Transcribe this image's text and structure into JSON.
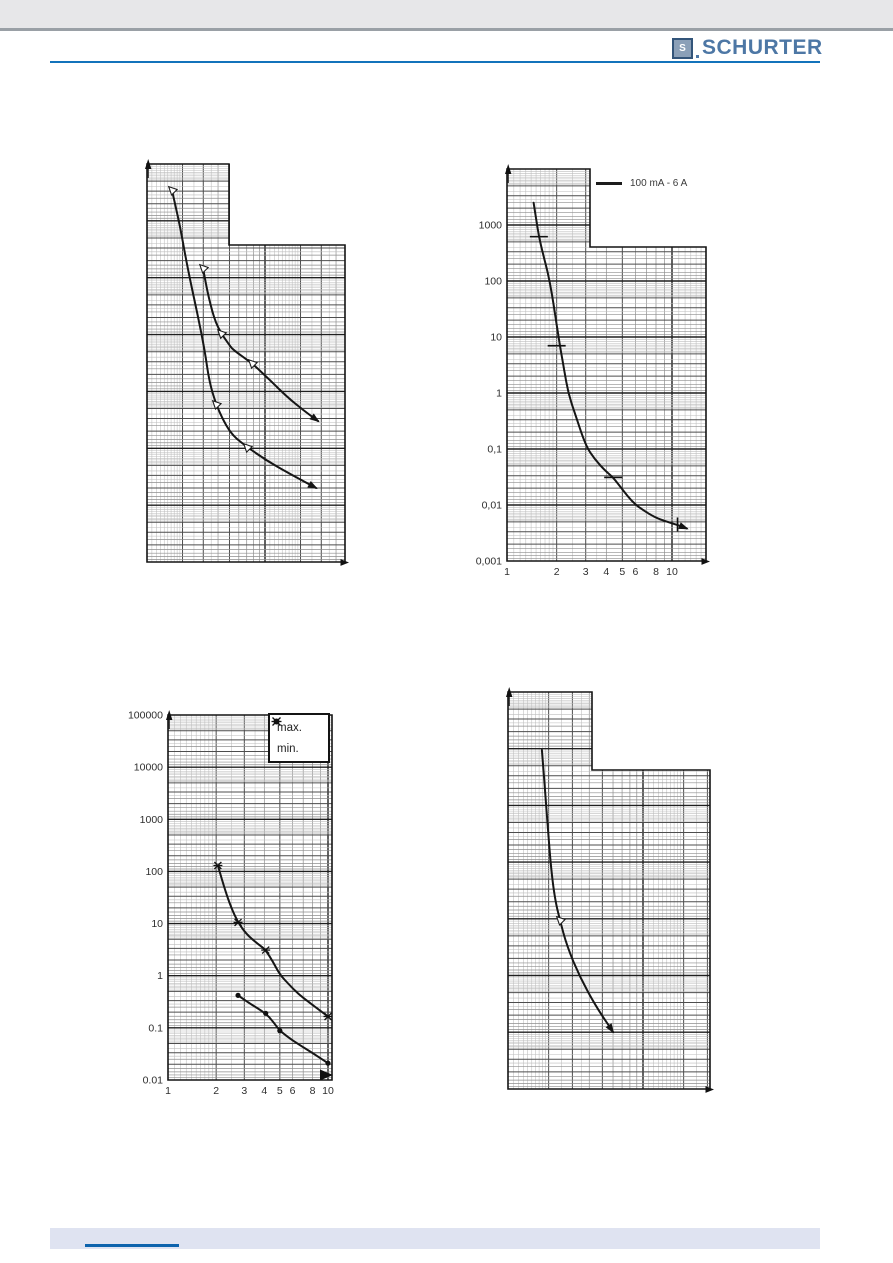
{
  "header": {
    "logo": {
      "icon": "schurter-square-s-mark",
      "icon_letter": "S",
      "text": "SCHURTER",
      "color": "#4d77a5"
    },
    "band_color": "#e7e7e9",
    "rule_color": "#1373bb"
  },
  "footer": {
    "band_color": "#dfe3f1",
    "line_color": "#0d63ad"
  },
  "chart_data": [
    {
      "id": "top-left",
      "type": "line",
      "axes": "log-log scanned grid with stepped (notched) outline; axis tick labels not visible",
      "coords": "fraction-of-plot-area",
      "x_ticks": [],
      "y_ticks": [],
      "legend": [],
      "series": [
        {
          "name": "upper-curve",
          "points": [
            [
              0.283,
              0.261
            ],
            [
              0.303,
              0.317
            ],
            [
              0.328,
              0.367
            ],
            [
              0.348,
              0.399
            ],
            [
              0.374,
              0.425
            ],
            [
              0.409,
              0.45
            ],
            [
              0.434,
              0.467
            ],
            [
              0.53,
              0.5
            ],
            [
              0.621,
              0.543
            ],
            [
              0.707,
              0.585
            ],
            [
              0.788,
              0.618
            ],
            [
              0.864,
              0.646
            ]
          ],
          "markers": [
            {
              "t": "tri",
              "at": [
                0.283,
                0.261
              ]
            },
            {
              "t": "tri",
              "at": [
                0.374,
                0.425
              ]
            },
            {
              "t": "tri",
              "at": [
                0.53,
                0.5
              ]
            }
          ],
          "arrow_end": true
        },
        {
          "name": "lower-curve",
          "points": [
            [
              0.126,
              0.065
            ],
            [
              0.152,
              0.123
            ],
            [
              0.172,
              0.171
            ],
            [
              0.207,
              0.266
            ],
            [
              0.253,
              0.372
            ],
            [
              0.293,
              0.472
            ],
            [
              0.313,
              0.543
            ],
            [
              0.348,
              0.603
            ],
            [
              0.389,
              0.648
            ],
            [
              0.434,
              0.683
            ],
            [
              0.505,
              0.711
            ],
            [
              0.601,
              0.744
            ],
            [
              0.712,
              0.776
            ],
            [
              0.854,
              0.814
            ]
          ],
          "markers": [
            {
              "t": "tri",
              "at": [
                0.126,
                0.065
              ]
            },
            {
              "t": "tri",
              "at": [
                0.348,
                0.603
              ]
            },
            {
              "t": "tri",
              "at": [
                0.505,
                0.711
              ]
            }
          ],
          "arrow_end": true
        }
      ]
    },
    {
      "id": "top-right",
      "type": "line",
      "axes": "log-log",
      "coords": "data",
      "x_ticks": [
        "1",
        "2",
        "3",
        "4",
        "5",
        "6",
        "8",
        "10"
      ],
      "y_ticks": [
        "1000",
        "100",
        "10",
        "1",
        "0,1",
        "0,01",
        "0,001"
      ],
      "x_range": [
        1,
        16
      ],
      "y_range": [
        0.001,
        10000
      ],
      "legend": [
        {
          "marker": "line",
          "label": "100 mA - 6 A"
        }
      ],
      "series": [
        {
          "name": "100 mA - 6 A",
          "points": [
            [
              1.45,
              2500
            ],
            [
              1.5,
              1300
            ],
            [
              1.56,
              620
            ],
            [
              1.66,
              290
            ],
            [
              1.77,
              140
            ],
            [
              1.88,
              55
            ],
            [
              1.98,
              20
            ],
            [
              2.1,
              6.5
            ],
            [
              2.22,
              2.6
            ],
            [
              2.35,
              1.0
            ],
            [
              2.6,
              0.4
            ],
            [
              3.0,
              0.115
            ],
            [
              3.4,
              0.066
            ],
            [
              3.9,
              0.042
            ],
            [
              4.4,
              0.031
            ],
            [
              5.0,
              0.019
            ],
            [
              5.8,
              0.011
            ],
            [
              6.8,
              0.0078
            ],
            [
              7.9,
              0.006
            ],
            [
              9.0,
              0.0052
            ],
            [
              10.0,
              0.0047
            ],
            [
              11.3,
              0.0042
            ],
            [
              12.3,
              0.0038
            ]
          ],
          "markers": [
            {
              "t": "dashh",
              "at": [
                1.56,
                620
              ]
            },
            {
              "t": "dashh",
              "at": [
                2.0,
                7.0
              ]
            },
            {
              "t": "dashh",
              "at": [
                4.4,
                0.031
              ]
            },
            {
              "t": "dashv",
              "at": [
                10.8,
                0.0045
              ]
            }
          ],
          "arrow_end": true
        }
      ]
    },
    {
      "id": "bottom-left",
      "type": "line",
      "axes": "log-log",
      "coords": "data",
      "x_ticks": [
        "1",
        "2",
        "3",
        "4",
        "5",
        "6",
        "8",
        "10"
      ],
      "y_ticks": [
        "100000",
        "10000",
        "1000",
        "100",
        "10",
        "1",
        "0.1",
        "0.01"
      ],
      "x_range": [
        1,
        10.6
      ],
      "y_range": [
        0.01,
        100000
      ],
      "legend": [
        {
          "marker": "star",
          "label": "max."
        },
        {
          "marker": "dot",
          "label": "min."
        }
      ],
      "series": [
        {
          "name": "max.",
          "points": [
            [
              2.05,
              130
            ],
            [
              2.25,
              48
            ],
            [
              2.5,
              19
            ],
            [
              2.74,
              10.5
            ],
            [
              3.1,
              6.2
            ],
            [
              3.6,
              4.2
            ],
            [
              4.08,
              3.1
            ],
            [
              4.55,
              1.8
            ],
            [
              5.0,
              1.05
            ],
            [
              5.7,
              0.68
            ],
            [
              6.5,
              0.45
            ],
            [
              7.5,
              0.32
            ],
            [
              8.5,
              0.24
            ],
            [
              10.0,
              0.165
            ]
          ],
          "markers": [
            {
              "t": "star",
              "at": [
                2.05,
                130
              ]
            },
            {
              "t": "star",
              "at": [
                2.74,
                10.5
              ]
            },
            {
              "t": "star",
              "at": [
                4.08,
                3.1
              ]
            },
            {
              "t": "star",
              "at": [
                10.0,
                0.165
              ]
            }
          ],
          "arrow_end": false
        },
        {
          "name": "min.",
          "points": [
            [
              2.74,
              0.42
            ],
            [
              3.2,
              0.3
            ],
            [
              4.08,
              0.19
            ],
            [
              4.6,
              0.125
            ],
            [
              5.0,
              0.088
            ],
            [
              5.8,
              0.062
            ],
            [
              6.5,
              0.049
            ],
            [
              8.0,
              0.033
            ],
            [
              10.0,
              0.021
            ]
          ],
          "markers": [
            {
              "t": "dot",
              "at": [
                2.74,
                0.42
              ]
            },
            {
              "t": "dot",
              "at": [
                4.08,
                0.19
              ]
            },
            {
              "t": "dot",
              "at": [
                5.0,
                0.088
              ]
            },
            {
              "t": "dot",
              "at": [
                10.0,
                0.021
              ]
            }
          ],
          "arrow_end": false
        }
      ]
    },
    {
      "id": "bottom-right",
      "type": "line",
      "axes": "log-log scanned grid with stepped (notched) outline; axis tick labels not visible",
      "coords": "fraction-of-plot-area",
      "x_ticks": [],
      "y_ticks": [],
      "legend": [],
      "series": [
        {
          "name": "curve",
          "points": [
            [
              0.168,
              0.146
            ],
            [
              0.176,
              0.2
            ],
            [
              0.183,
              0.247
            ],
            [
              0.198,
              0.348
            ],
            [
              0.213,
              0.443
            ],
            [
              0.233,
              0.524
            ],
            [
              0.257,
              0.574
            ],
            [
              0.292,
              0.64
            ],
            [
              0.356,
              0.718
            ],
            [
              0.436,
              0.793
            ],
            [
              0.52,
              0.856
            ]
          ],
          "markers": [
            {
              "t": "tri",
              "at": [
                0.257,
                0.574
              ]
            }
          ],
          "arrow_end": true
        }
      ]
    }
  ]
}
